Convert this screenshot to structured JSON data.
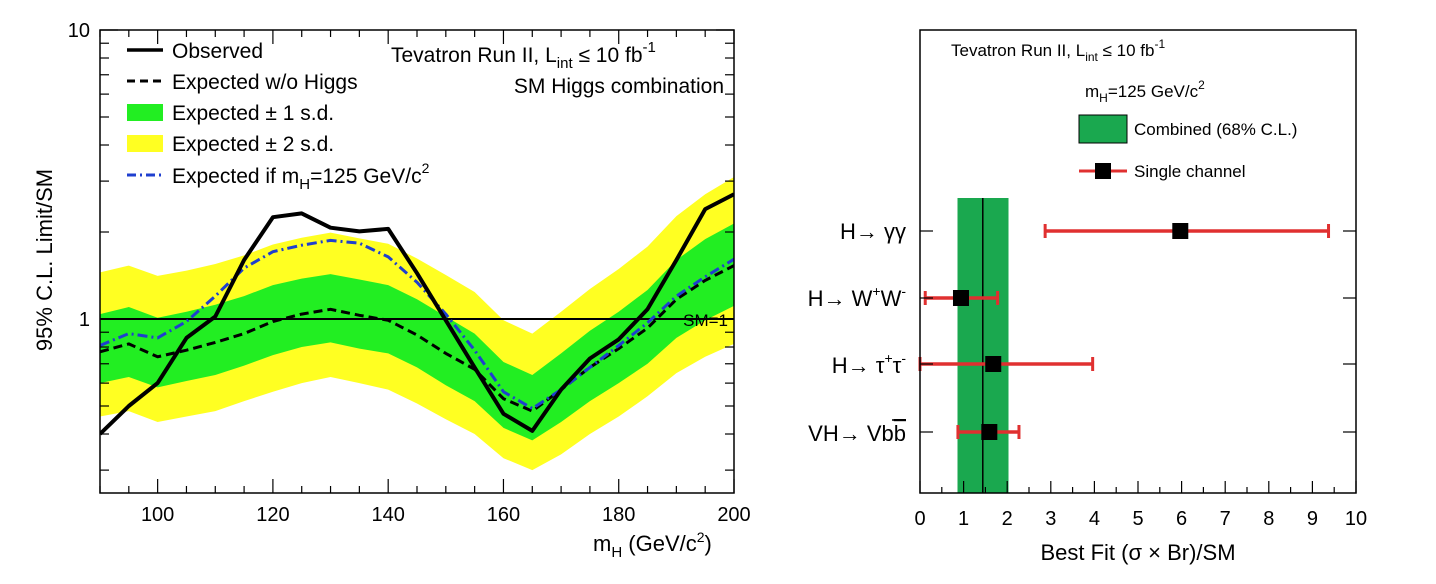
{
  "chart_data": [
    {
      "type": "line",
      "xlabel": "m",
      "xlabel_sub": "H",
      "xlabel_unit": " (GeV/c",
      "xlabel_unit_sup": "2",
      "xlabel_close": ")",
      "ylabel": "95% C.L. Limit/SM",
      "xlim": [
        90,
        200
      ],
      "ylim": [
        0.25,
        10
      ],
      "yscale": "log",
      "x_ticks": [
        "100",
        "120",
        "140",
        "160",
        "180",
        "200"
      ],
      "y_ticks": [
        "1",
        "10"
      ],
      "annotation_line1_pre": "Tevatron Run II, L",
      "annotation_line1_sub": "int",
      "annotation_line1_mid": " ≤ 10 fb",
      "annotation_line1_sup": "-1",
      "annotation_line2": "SM Higgs combination",
      "reference_line": {
        "value": 1,
        "label": "SM=1"
      },
      "legend_position": "top-left",
      "legend": {
        "observed": "Observed",
        "expected": "Expected w/o Higgs",
        "band1": "Expected ± 1 s.d.",
        "band2": "Expected ± 2 s.d.",
        "expected125_pre": "Expected if m",
        "expected125_sub": "H",
        "expected125_post": "=125 GeV/c",
        "expected125_sup": "2"
      },
      "colors": {
        "observed": "#000000",
        "expected": "#000000",
        "band1": "#22ee22",
        "band2": "#ffff22",
        "expected125": "#1f3fcf"
      },
      "x": [
        90,
        95,
        100,
        105,
        110,
        115,
        120,
        125,
        130,
        135,
        140,
        145,
        150,
        155,
        160,
        165,
        170,
        175,
        180,
        185,
        190,
        195,
        200
      ],
      "series": [
        {
          "key": "observed",
          "values": [
            0.4,
            0.5,
            0.6,
            0.86,
            1.02,
            1.6,
            2.25,
            2.32,
            2.07,
            2.01,
            2.05,
            1.44,
            0.99,
            0.68,
            0.47,
            0.41,
            0.57,
            0.73,
            0.85,
            1.08,
            1.6,
            2.4,
            2.7
          ]
        },
        {
          "key": "expected",
          "values": [
            0.77,
            0.82,
            0.74,
            0.78,
            0.83,
            0.89,
            0.98,
            1.04,
            1.08,
            1.03,
            0.99,
            0.88,
            0.76,
            0.67,
            0.53,
            0.48,
            0.57,
            0.68,
            0.79,
            0.93,
            1.17,
            1.36,
            1.53
          ]
        },
        {
          "key": "expected125",
          "values": [
            0.81,
            0.89,
            0.86,
            0.98,
            1.2,
            1.5,
            1.71,
            1.8,
            1.87,
            1.83,
            1.64,
            1.34,
            1.04,
            0.78,
            0.56,
            0.49,
            0.57,
            0.68,
            0.81,
            0.97,
            1.2,
            1.4,
            1.61
          ]
        }
      ],
      "band1": {
        "lower": [
          0.6,
          0.63,
          0.58,
          0.61,
          0.64,
          0.69,
          0.75,
          0.8,
          0.83,
          0.79,
          0.76,
          0.68,
          0.59,
          0.52,
          0.42,
          0.38,
          0.44,
          0.52,
          0.6,
          0.7,
          0.86,
          0.99,
          1.11
        ],
        "upper": [
          1.04,
          1.1,
          1.01,
          1.06,
          1.12,
          1.2,
          1.31,
          1.38,
          1.43,
          1.37,
          1.31,
          1.17,
          1.02,
          0.89,
          0.71,
          0.64,
          0.76,
          0.91,
          1.06,
          1.26,
          1.6,
          1.89,
          2.14
        ]
      },
      "band2": {
        "lower": [
          0.46,
          0.48,
          0.44,
          0.46,
          0.48,
          0.52,
          0.56,
          0.6,
          0.63,
          0.6,
          0.57,
          0.51,
          0.45,
          0.4,
          0.33,
          0.3,
          0.34,
          0.4,
          0.46,
          0.54,
          0.65,
          0.74,
          0.82
        ],
        "upper": [
          1.45,
          1.53,
          1.41,
          1.47,
          1.55,
          1.66,
          1.81,
          1.91,
          1.99,
          1.9,
          1.82,
          1.62,
          1.42,
          1.24,
          0.99,
          0.89,
          1.06,
          1.27,
          1.49,
          1.78,
          2.27,
          2.7,
          3.1
        ]
      }
    },
    {
      "type": "scatter",
      "xlabel": "Best Fit (σ × Br)/SM",
      "xlim": [
        0,
        10
      ],
      "x_ticks": [
        "0",
        "1",
        "2",
        "3",
        "4",
        "5",
        "6",
        "7",
        "8",
        "9",
        "10"
      ],
      "annotation_line1_pre": "Tevatron Run II, L",
      "annotation_line1_sub": "int",
      "annotation_line1_mid": " ≤ 10 fb",
      "annotation_line1_sup": "-1",
      "annotation_mass_pre": "m",
      "annotation_mass_sub": "H",
      "annotation_mass_post": "=125 GeV/c",
      "annotation_mass_sup": "2",
      "legend": {
        "combined": "Combined (68% C.L.)",
        "single": "Single channel"
      },
      "legend_position": "top-right",
      "colors": {
        "band": "#1aa84f",
        "errorbar": "#e03030",
        "marker": "#000000"
      },
      "combined": {
        "value": 1.44,
        "low": 0.86,
        "high": 2.03
      },
      "channels": [
        {
          "label_pre": "H",
          "label_mid": "→ γγ",
          "label_tail": "",
          "value": 5.97,
          "low": 2.87,
          "high": 9.37
        },
        {
          "label_pre": "H",
          "label_mid": "→ W",
          "label_sup1": "+",
          "label_mid2": "W",
          "label_sup2": "-",
          "value": 0.94,
          "low": 0.12,
          "high": 1.78
        },
        {
          "label_pre": "H",
          "label_mid": "→ τ",
          "label_sup1": "+",
          "label_mid2": "τ",
          "label_sup2": "-",
          "value": 1.68,
          "low": 0.0,
          "high": 3.96
        },
        {
          "label_pre": "VH",
          "label_mid": "→ Vb",
          "label_bar": "b",
          "value": 1.59,
          "low": 0.87,
          "high": 2.27
        }
      ]
    }
  ]
}
